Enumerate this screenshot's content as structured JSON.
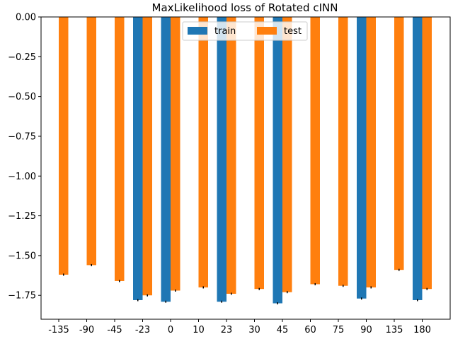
{
  "chart_data": {
    "type": "bar",
    "title": "MaxLikelihood loss of Rotated cINN",
    "xlabel": "",
    "ylabel": "",
    "categories": [
      "-135",
      "-90",
      "-45",
      "-23",
      "0",
      "10",
      "23",
      "30",
      "45",
      "60",
      "75",
      "90",
      "135",
      "180"
    ],
    "series": [
      {
        "name": "train",
        "color": "#1f77b4",
        "values": [
          null,
          null,
          null,
          -1.78,
          -1.79,
          null,
          -1.79,
          null,
          -1.8,
          null,
          null,
          -1.77,
          null,
          -1.78
        ]
      },
      {
        "name": "test",
        "color": "#ff7f0e",
        "values": [
          -1.62,
          -1.56,
          -1.66,
          -1.75,
          -1.72,
          -1.7,
          -1.74,
          -1.71,
          -1.73,
          -1.68,
          -1.69,
          -1.7,
          -1.59,
          -1.71
        ]
      }
    ],
    "ylim": [
      -1.9,
      0.0
    ],
    "yticks": [
      "0.00",
      "−0.25",
      "−0.50",
      "−0.75",
      "−1.00",
      "−1.25",
      "−1.50",
      "−1.75"
    ],
    "ytick_values": [
      0.0,
      -0.25,
      -0.5,
      -0.75,
      -1.0,
      -1.25,
      -1.5,
      -1.75
    ],
    "grid": false,
    "legend_position": "top-center"
  }
}
